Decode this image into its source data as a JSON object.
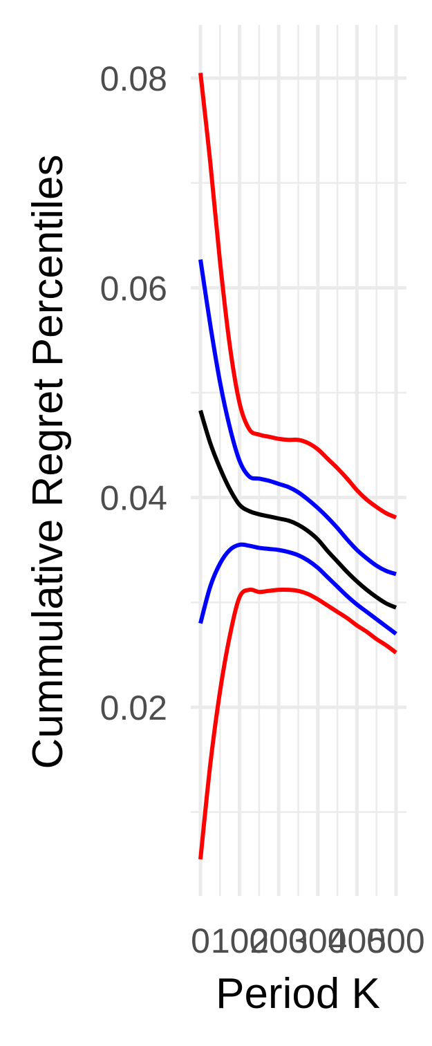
{
  "chart_data": {
    "type": "line",
    "title": "",
    "xlabel": "Period K",
    "ylabel": "Cummulative Regret Percentiles",
    "xlim": [
      0,
      500
    ],
    "ylim": [
      0.003,
      0.085
    ],
    "x_ticks_major": [
      0,
      100,
      200,
      300,
      400,
      500
    ],
    "x_tick_labels": [
      "0",
      "100",
      "200",
      "300",
      "400",
      "500"
    ],
    "x_ticks_minor": [
      50,
      150,
      250,
      350,
      450
    ],
    "y_ticks_major": [
      0.02,
      0.04,
      0.06,
      0.08
    ],
    "y_tick_labels": [
      "0.02",
      "0.04",
      "0.06",
      "0.08"
    ],
    "y_ticks_minor": [
      0.01,
      0.03,
      0.05,
      0.07
    ],
    "grid": true,
    "legend": "none",
    "series": [
      {
        "color": "#ff0000",
        "x": [
          0,
          25,
          50,
          75,
          100,
          125,
          150,
          175,
          200,
          225,
          250,
          275,
          300,
          325,
          350,
          375,
          400,
          425,
          450,
          475,
          500
        ],
        "values": [
          0.0805,
          0.072,
          0.0625,
          0.0545,
          0.049,
          0.0465,
          0.046,
          0.0458,
          0.0456,
          0.0455,
          0.0455,
          0.0452,
          0.0446,
          0.0437,
          0.0428,
          0.0418,
          0.0407,
          0.0398,
          0.0391,
          0.0385,
          0.0381
        ]
      },
      {
        "color": "#0000ff",
        "x": [
          0,
          25,
          50,
          75,
          100,
          125,
          150,
          175,
          200,
          225,
          250,
          275,
          300,
          325,
          350,
          375,
          400,
          425,
          450,
          475,
          500
        ],
        "values": [
          0.0627,
          0.0565,
          0.051,
          0.0467,
          0.0435,
          0.042,
          0.0418,
          0.0416,
          0.0413,
          0.041,
          0.0405,
          0.0398,
          0.039,
          0.0381,
          0.0371,
          0.036,
          0.035,
          0.0342,
          0.0335,
          0.033,
          0.0327
        ]
      },
      {
        "color": "#000000",
        "x": [
          0,
          25,
          50,
          75,
          100,
          125,
          150,
          175,
          200,
          225,
          250,
          275,
          300,
          325,
          350,
          375,
          400,
          425,
          450,
          475,
          500
        ],
        "values": [
          0.0483,
          0.0452,
          0.0428,
          0.0408,
          0.0393,
          0.0387,
          0.0384,
          0.0382,
          0.038,
          0.0378,
          0.0374,
          0.0368,
          0.036,
          0.0349,
          0.0339,
          0.0329,
          0.032,
          0.0312,
          0.0305,
          0.0299,
          0.0295
        ]
      },
      {
        "color": "#0000ff",
        "x": [
          0,
          25,
          50,
          75,
          100,
          125,
          150,
          175,
          200,
          225,
          250,
          275,
          300,
          325,
          350,
          375,
          400,
          425,
          450,
          475,
          500
        ],
        "values": [
          0.028,
          0.0315,
          0.0337,
          0.035,
          0.0355,
          0.0354,
          0.0352,
          0.0351,
          0.035,
          0.0348,
          0.0345,
          0.034,
          0.0333,
          0.0324,
          0.0315,
          0.0306,
          0.0298,
          0.0291,
          0.0284,
          0.0277,
          0.027
        ]
      },
      {
        "color": "#ff0000",
        "x": [
          0,
          25,
          50,
          75,
          100,
          125,
          150,
          175,
          200,
          225,
          250,
          275,
          300,
          325,
          350,
          375,
          400,
          425,
          450,
          475,
          500
        ],
        "values": [
          0.0055,
          0.0145,
          0.0215,
          0.0268,
          0.0305,
          0.0312,
          0.031,
          0.0311,
          0.0312,
          0.0312,
          0.0311,
          0.0308,
          0.0303,
          0.0297,
          0.0291,
          0.0285,
          0.0278,
          0.0272,
          0.0265,
          0.0259,
          0.0252
        ]
      }
    ]
  }
}
